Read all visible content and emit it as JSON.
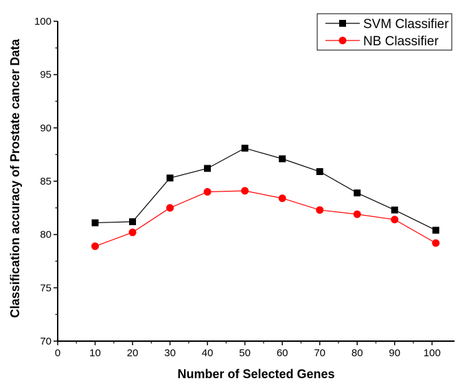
{
  "chart_data": {
    "type": "line",
    "title": "",
    "xlabel": "Number of Selected Genes",
    "ylabel": "Classification accuracy of Prostate cancer Data",
    "xlim": [
      0,
      106
    ],
    "ylim": [
      70,
      100
    ],
    "xticks": [
      0,
      10,
      20,
      30,
      40,
      50,
      60,
      70,
      80,
      90,
      100
    ],
    "yticks": [
      70,
      75,
      80,
      85,
      90,
      95,
      100
    ],
    "grid": false,
    "legend_position": "top-right",
    "x": [
      10,
      20,
      30,
      40,
      50,
      60,
      70,
      80,
      90,
      101
    ],
    "series": [
      {
        "name": "SVM Classifier",
        "color": "#000000",
        "marker": "square",
        "values": [
          81.1,
          81.2,
          85.3,
          86.2,
          88.1,
          87.1,
          85.9,
          83.9,
          82.3,
          80.4
        ]
      },
      {
        "name": "NB Classifier",
        "color": "#ff0000",
        "marker": "circle",
        "values": [
          78.9,
          80.2,
          82.5,
          84.0,
          84.1,
          83.4,
          82.3,
          81.9,
          81.4,
          79.2
        ]
      }
    ]
  }
}
